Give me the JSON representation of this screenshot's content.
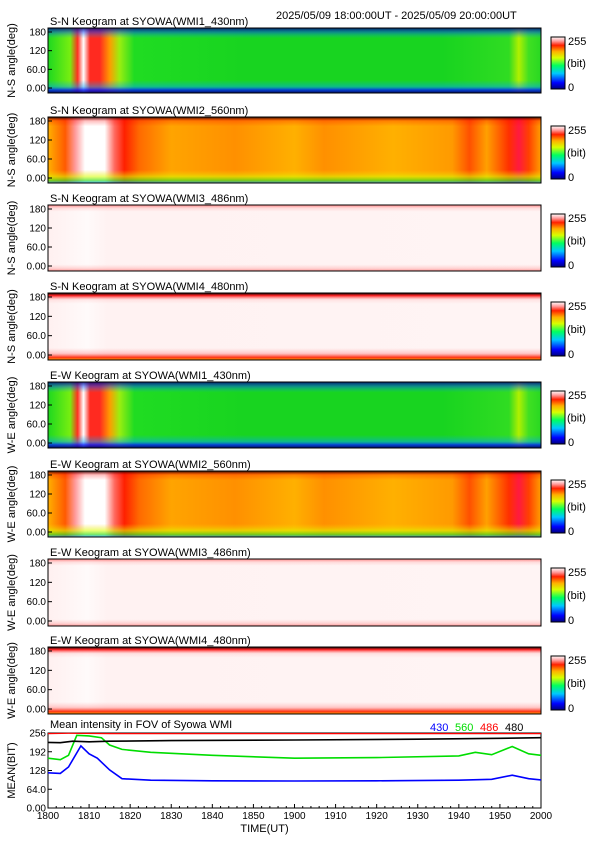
{
  "header": {
    "time_range": "2025/05/09 18:00:00UT - 2025/05/09 20:00:00UT"
  },
  "colorbar": {
    "max_label": "255",
    "unit_label": "(bit)",
    "min_label": "0"
  },
  "keograms": [
    {
      "title": "S-N Keogram at SYOWA(WMI1_430nm)",
      "ylabel": "N-S angle(deg)",
      "style": "430"
    },
    {
      "title": "S-N Keogram at SYOWA(WMI2_560nm)",
      "ylabel": "N-S angle(deg)",
      "style": "560"
    },
    {
      "title": "S-N Keogram at SYOWA(WMI3_486nm)",
      "ylabel": "N-S angle(deg)",
      "style": "486"
    },
    {
      "title": "S-N Keogram at SYOWA(WMI4_480nm)",
      "ylabel": "N-S angle(deg)",
      "style": "480"
    },
    {
      "title": "E-W Keogram at SYOWA(WMI1_430nm)",
      "ylabel": "W-E angle(deg)",
      "style": "430"
    },
    {
      "title": "E-W Keogram at SYOWA(WMI2_560nm)",
      "ylabel": "W-E angle(deg)",
      "style": "560"
    },
    {
      "title": "E-W Keogram at SYOWA(WMI3_486nm)",
      "ylabel": "W-E angle(deg)",
      "style": "486"
    },
    {
      "title": "E-W Keogram at SYOWA(WMI4_480nm)",
      "ylabel": "W-E angle(deg)",
      "style": "480"
    }
  ],
  "keogram_yticks": [
    "0.00",
    "60.0",
    "120",
    "180"
  ],
  "chart_data": {
    "type": "line",
    "title": "Mean intensity in FOV of Syowa WMI",
    "xlabel": "TIME(UT)",
    "ylabel": "MEAN(BIT)",
    "xlim": [
      1800,
      2000
    ],
    "ylim": [
      0,
      256
    ],
    "x_tick_labels": [
      "1800",
      "1810",
      "1820",
      "1830",
      "1840",
      "1850",
      "1900",
      "1910",
      "1920",
      "1930",
      "1940",
      "1950",
      "2000"
    ],
    "y_tick_labels": [
      "0.00",
      "64.0",
      "128",
      "192",
      "256"
    ],
    "series": [
      {
        "name": "430",
        "color": "#0000ff",
        "x": [
          1800,
          1803,
          1805,
          1808,
          1810,
          1812,
          1815,
          1818,
          1825,
          1840,
          1900,
          1920,
          1940,
          1948,
          1953,
          1957,
          2000
        ],
        "y": [
          120,
          118,
          140,
          212,
          185,
          170,
          130,
          100,
          95,
          93,
          92,
          93,
          95,
          98,
          112,
          100,
          96
        ]
      },
      {
        "name": "560",
        "color": "#00dd00",
        "x": [
          1800,
          1803,
          1805,
          1807,
          1810,
          1813,
          1815,
          1818,
          1825,
          1840,
          1900,
          1920,
          1940,
          1944,
          1948,
          1953,
          1957,
          2000
        ],
        "y": [
          170,
          165,
          180,
          248,
          246,
          240,
          215,
          200,
          190,
          180,
          170,
          172,
          178,
          190,
          182,
          210,
          185,
          180
        ]
      },
      {
        "name": "486",
        "color": "#ff0000",
        "x": [
          1800,
          1805,
          1815,
          1830,
          1900,
          1930,
          2000
        ],
        "y": [
          254,
          255,
          254,
          254,
          254,
          254,
          254
        ]
      },
      {
        "name": "480",
        "color": "#000000",
        "x": [
          1800,
          1803,
          1806,
          1810,
          1815,
          1830,
          1900,
          1930,
          1950,
          2000
        ],
        "y": [
          224,
          223,
          228,
          226,
          228,
          230,
          232,
          235,
          238,
          240
        ]
      }
    ]
  }
}
